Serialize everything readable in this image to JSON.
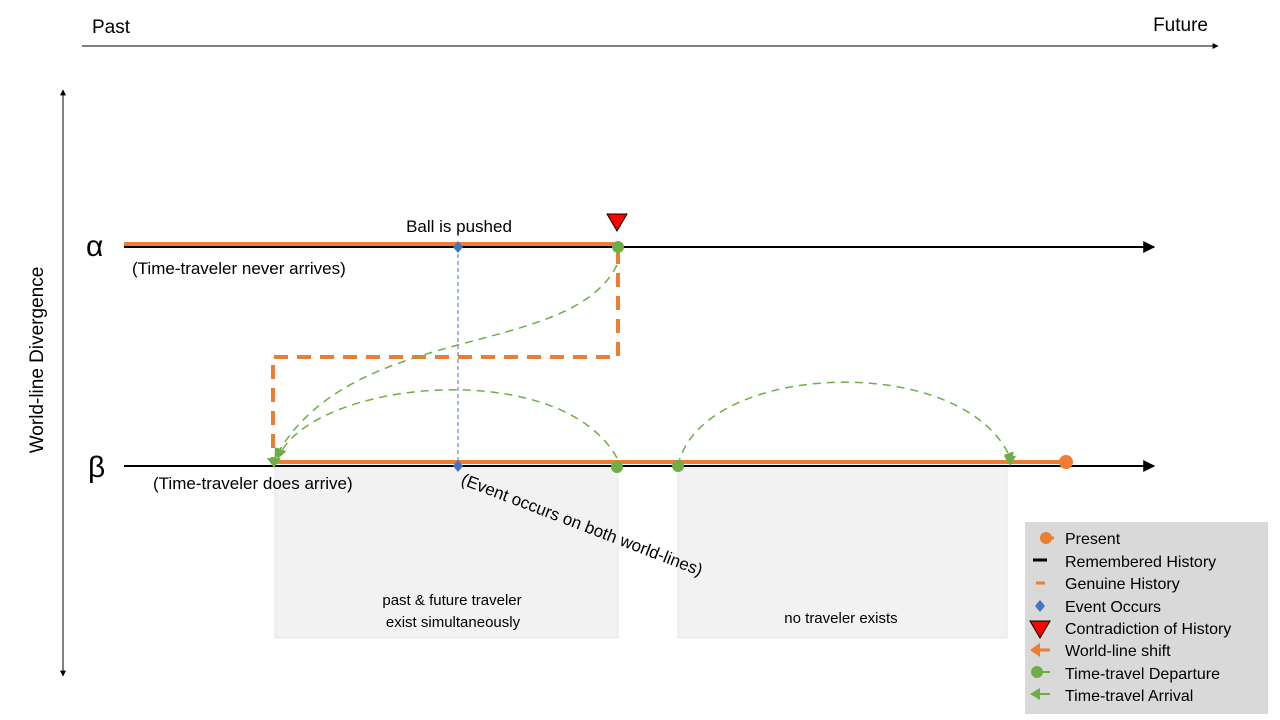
{
  "axis": {
    "past_label": "Past",
    "future_label": "Future",
    "divergence_label": "World-line Divergence"
  },
  "worldlines": {
    "alpha": {
      "symbol": "α",
      "caption": "(Time-traveler never arrives)",
      "event_label": "Ball is pushed"
    },
    "beta": {
      "symbol": "β",
      "caption": "(Time-traveler does arrive)",
      "event_label": "(Event occurs on both world-lines)"
    }
  },
  "regions": {
    "simultaneous_line1": "past & future traveler",
    "simultaneous_line2": "exist simultaneously",
    "no_traveler": "no traveler exists"
  },
  "legend": [
    {
      "key": "present",
      "label": "Present"
    },
    {
      "key": "remembered",
      "label": "Remembered History"
    },
    {
      "key": "genuine",
      "label": "Genuine History"
    },
    {
      "key": "event",
      "label": "Event Occurs"
    },
    {
      "key": "contradiction",
      "label": "Contradiction of History"
    },
    {
      "key": "shift",
      "label": "World-line shift"
    },
    {
      "key": "departure",
      "label": "Time-travel Departure"
    },
    {
      "key": "arrival",
      "label": "Time-travel Arrival"
    }
  ],
  "colors": {
    "history_orange": "#ED7D31",
    "travel_green": "#70AD47",
    "event_blue": "#4472C4",
    "contradiction_red": "#FF0000",
    "region_gray": "#F2F2F2",
    "legend_bg": "#D9D9D9"
  }
}
